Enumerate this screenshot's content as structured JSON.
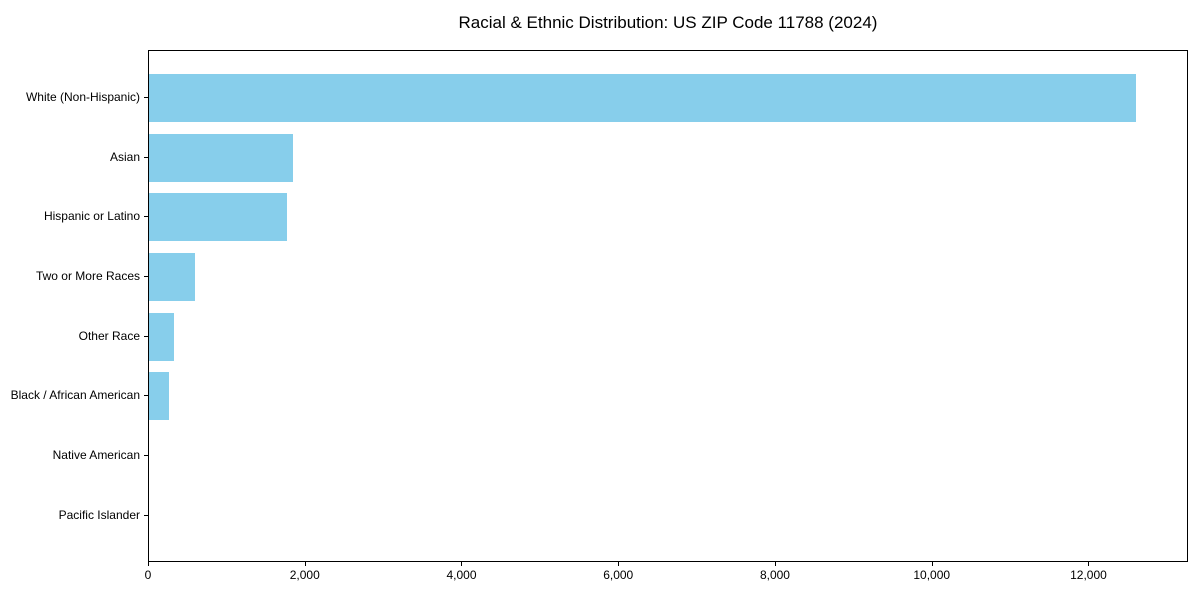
{
  "chart_data": {
    "type": "bar",
    "orientation": "horizontal",
    "title": "Racial & Ethnic Distribution: US ZIP Code 11788 (2024)",
    "categories": [
      "White (Non-Hispanic)",
      "Asian",
      "Hispanic or Latino",
      "Two or More Races",
      "Other Race",
      "Black / African American",
      "Native American",
      "Pacific Islander"
    ],
    "values": [
      12600,
      1840,
      1765,
      585,
      315,
      250,
      0,
      0
    ],
    "xlabel": "",
    "ylabel": "",
    "xlim": [
      0,
      13270
    ],
    "x_ticks": [
      0,
      2000,
      4000,
      6000,
      8000,
      10000,
      12000
    ],
    "x_tick_labels": [
      "0",
      "2,000",
      "4,000",
      "6,000",
      "8,000",
      "10,000",
      "12,000"
    ],
    "bar_color": "#87CEEB",
    "text_color": "#000000",
    "grid": false,
    "legend": false
  }
}
